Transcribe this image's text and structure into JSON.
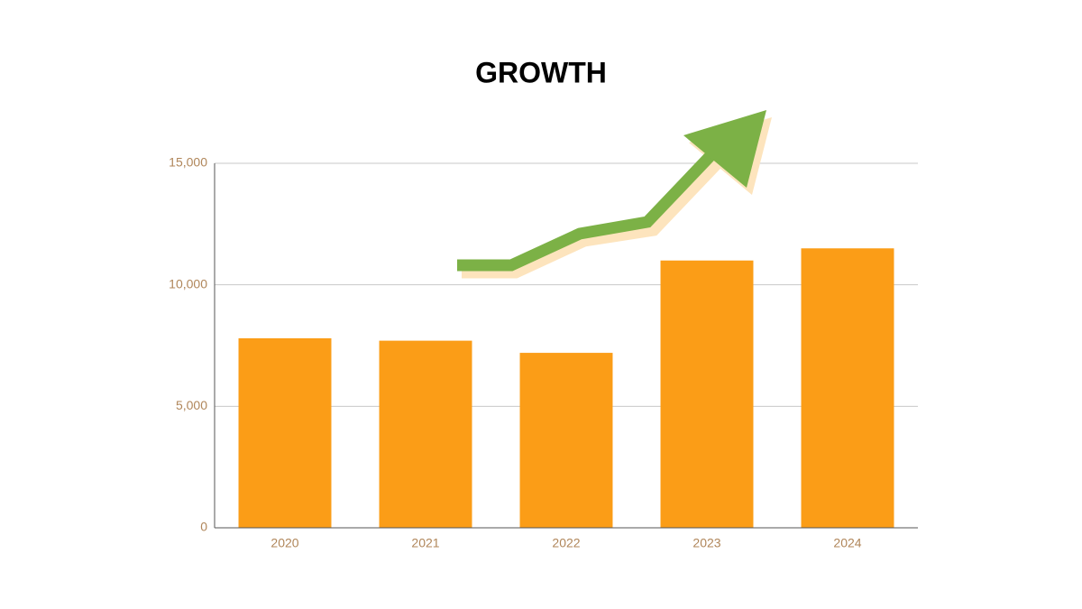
{
  "chart_data": {
    "type": "bar",
    "title": "GROWTH",
    "categories": [
      "2020",
      "2021",
      "2022",
      "2023",
      "2024"
    ],
    "values": [
      7800,
      7700,
      7200,
      11000,
      11500
    ],
    "color": "#fb9d17",
    "ylim": [
      0,
      15000
    ],
    "yticks": [
      0,
      {
        "value": 5000,
        "label": "5,000"
      },
      {
        "value": 10000,
        "label": "10,000"
      },
      {
        "value": 15000,
        "label": "15,000"
      }
    ],
    "grid": true
  }
}
